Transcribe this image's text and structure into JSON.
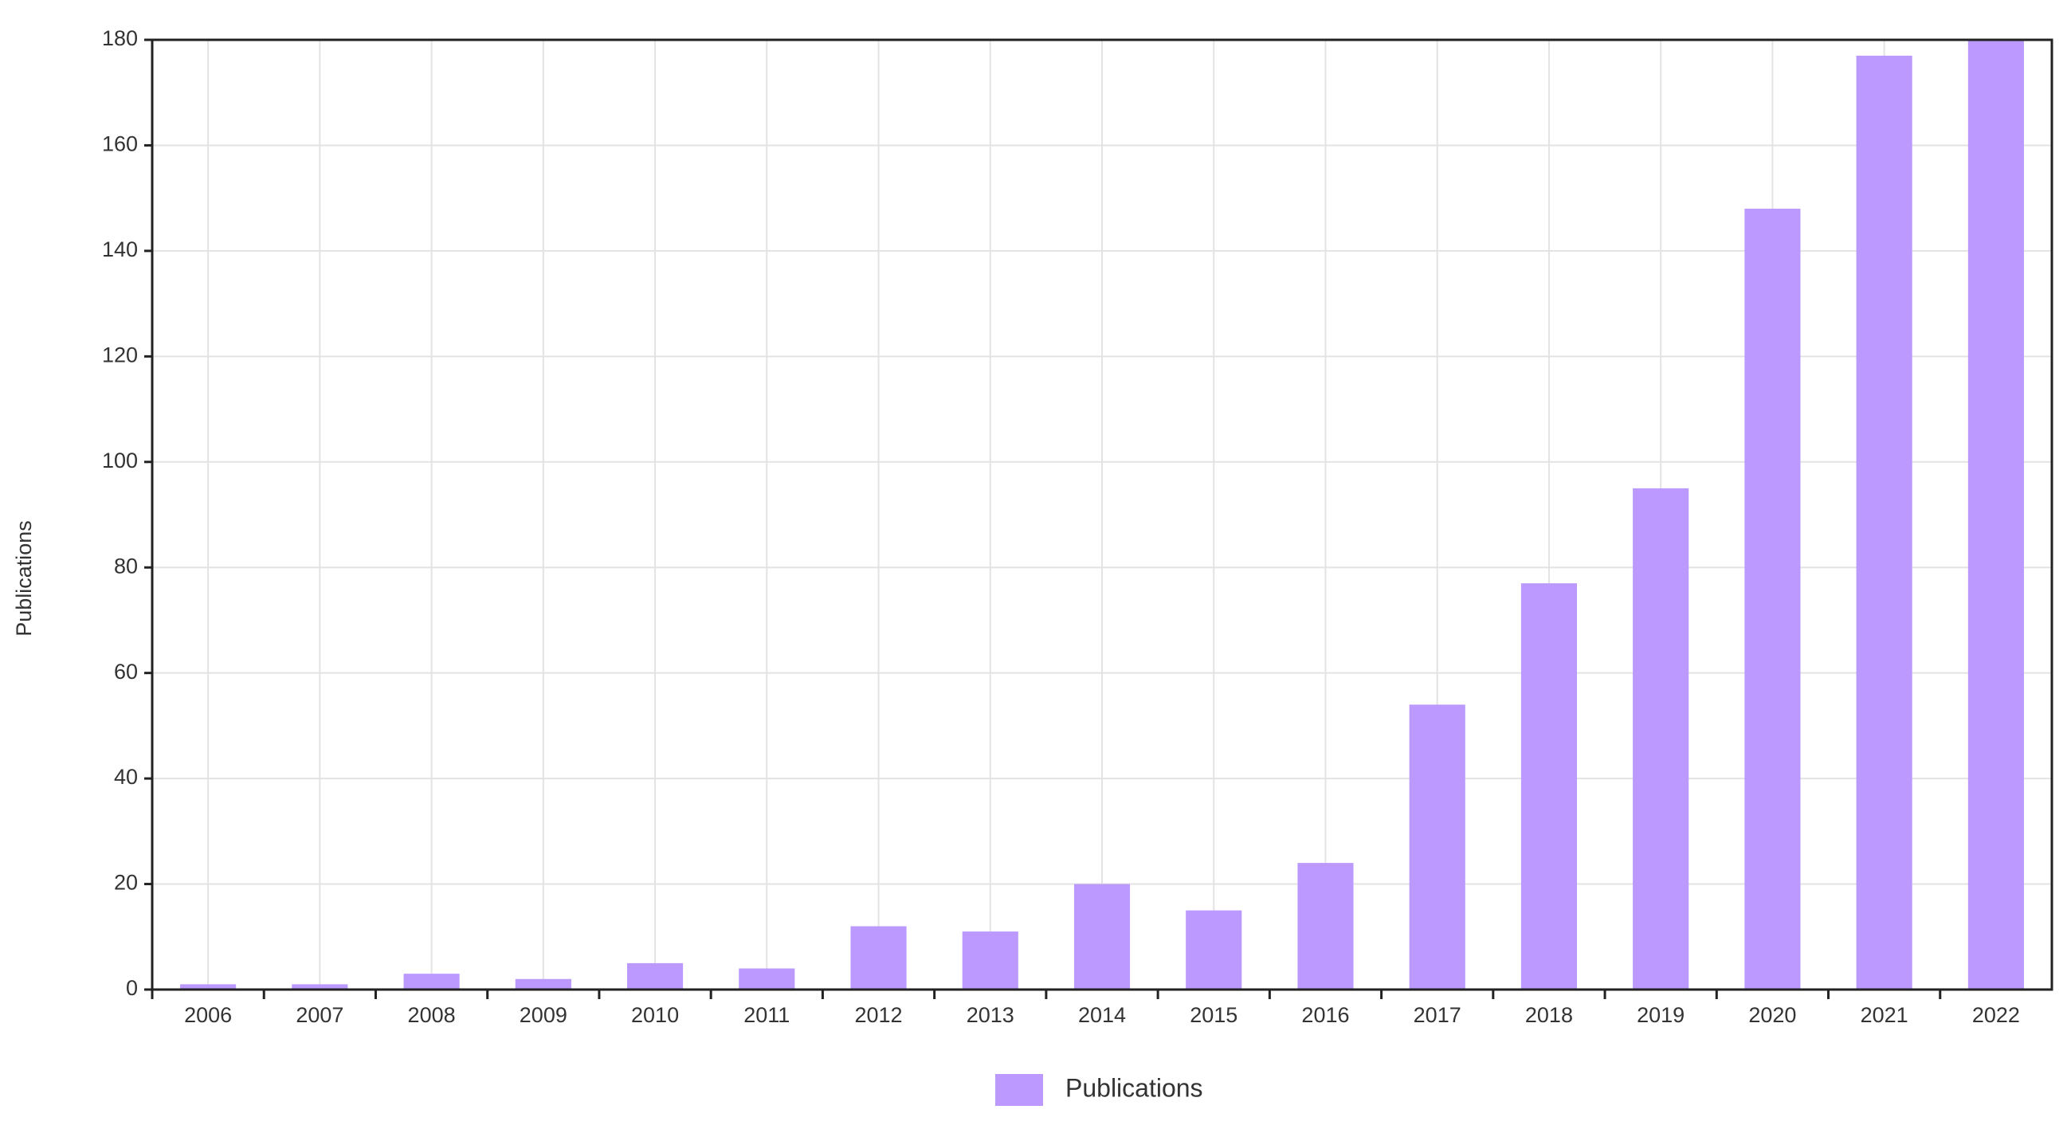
{
  "chart_data": {
    "type": "bar",
    "y_label": "Publications",
    "categories": [
      "2006",
      "2007",
      "2008",
      "2009",
      "2010",
      "2011",
      "2012",
      "2013",
      "2014",
      "2015",
      "2016",
      "2017",
      "2018",
      "2019",
      "2020",
      "2021",
      "2022"
    ],
    "series": [
      {
        "name": "Publications",
        "color": "#bb99ff",
        "values": [
          1,
          1,
          3,
          2,
          5,
          4,
          12,
          11,
          20,
          15,
          24,
          54,
          77,
          95,
          148,
          177,
          180
        ]
      }
    ],
    "ylim": [
      0,
      180
    ],
    "yticks": [
      0,
      20,
      40,
      60,
      80,
      100,
      120,
      140,
      160,
      180
    ],
    "grid": true
  }
}
